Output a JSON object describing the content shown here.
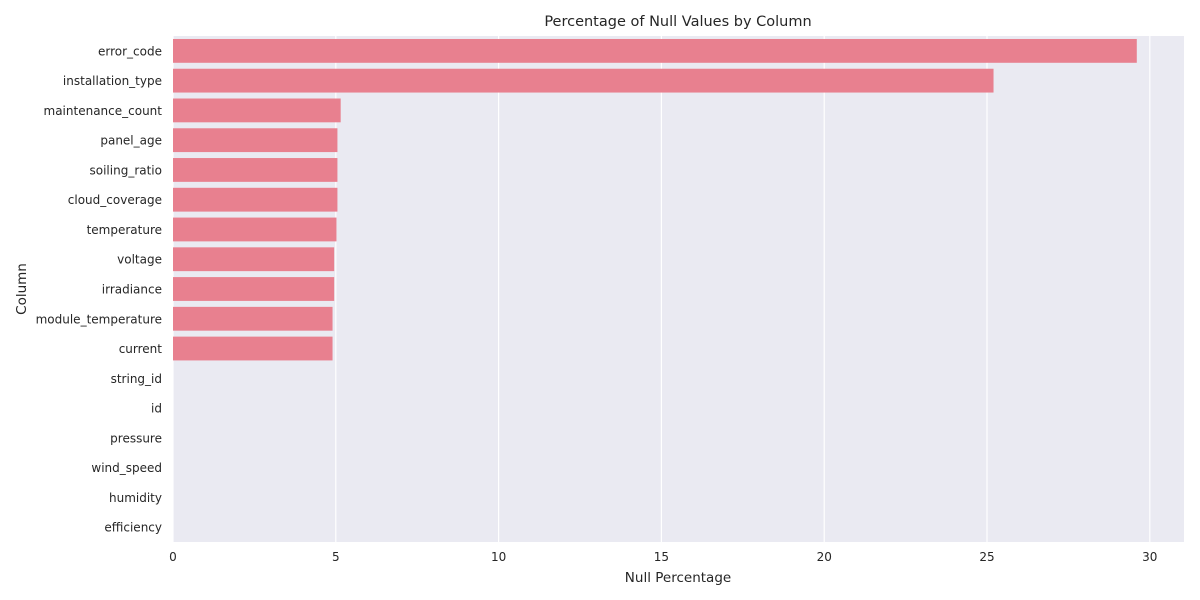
{
  "chart_data": {
    "type": "bar",
    "orientation": "horizontal",
    "title": "Percentage of Null Values by Column",
    "xlabel": "Null Percentage",
    "ylabel": "Column",
    "categories": [
      "error_code",
      "installation_type",
      "maintenance_count",
      "panel_age",
      "soiling_ratio",
      "cloud_coverage",
      "temperature",
      "voltage",
      "irradiance",
      "module_temperature",
      "current",
      "string_id",
      "id",
      "pressure",
      "wind_speed",
      "humidity",
      "efficiency"
    ],
    "values": [
      29.6,
      25.2,
      5.15,
      5.05,
      5.05,
      5.05,
      5.02,
      4.95,
      4.95,
      4.9,
      4.9,
      0,
      0,
      0,
      0,
      0,
      0
    ],
    "xlim": [
      0,
      31.05
    ],
    "xticks": [
      0,
      5,
      10,
      15,
      20,
      25,
      30
    ],
    "grid": true,
    "colors": {
      "bar": "#e8808f",
      "background": "#eaeaf2",
      "grid": "#ffffff"
    }
  }
}
